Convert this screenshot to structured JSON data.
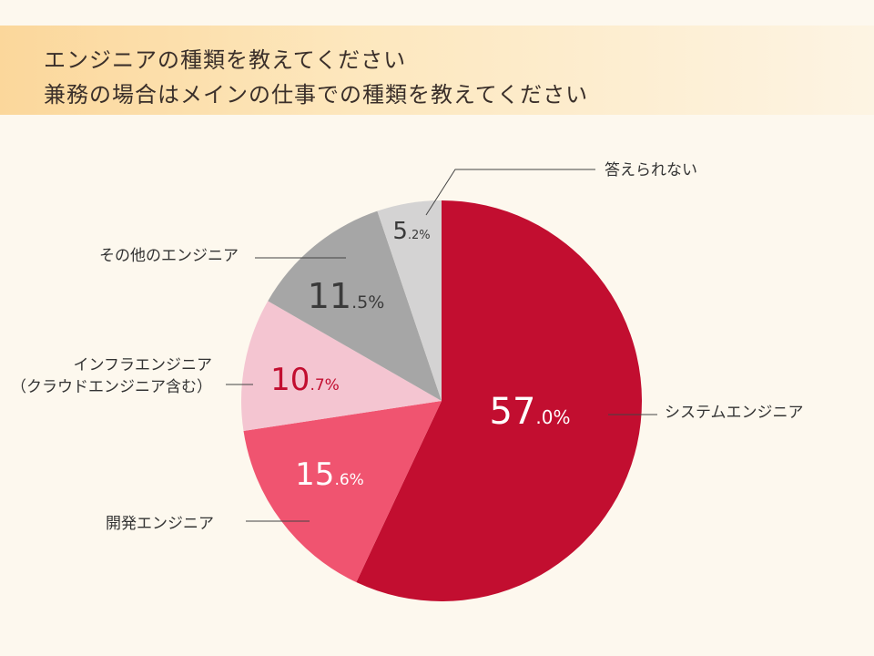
{
  "header": {
    "line1": "エンジニアの種類を教えてください",
    "line2": "兼務の場合はメインの仕事での種類を教えてください"
  },
  "chart_data": {
    "type": "pie",
    "title": "",
    "slices": [
      {
        "label": "システムエンジニア",
        "value": 57.0,
        "int": "57",
        "dec": ".0",
        "color": "#c20e30"
      },
      {
        "label": "開発エンジニア",
        "value": 15.6,
        "int": "15",
        "dec": ".6",
        "color": "#f05470"
      },
      {
        "label": "インフラエンジニア（クラウドエンジニア含む）",
        "label_lines": [
          "インフラエンジニア",
          "（クラウドエンジニア含む）"
        ],
        "value": 10.7,
        "int": "10",
        "dec": ".7",
        "color": "#f4c5d1"
      },
      {
        "label": "その他のエンジニア",
        "value": 11.5,
        "int": "11",
        "dec": ".5",
        "color": "#a6a6a6"
      },
      {
        "label": "答えられない",
        "value": 5.2,
        "int": "5",
        "dec": ".2",
        "color": "#d4d3d3"
      }
    ],
    "unit": "%"
  }
}
